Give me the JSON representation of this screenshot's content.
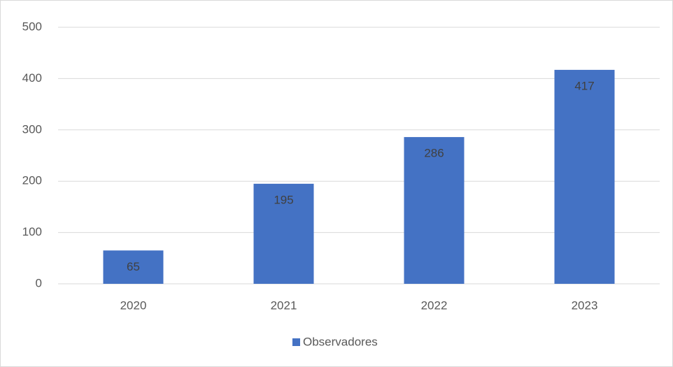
{
  "chart_data": {
    "type": "bar",
    "categories": [
      "2020",
      "2021",
      "2022",
      "2023"
    ],
    "series": [
      {
        "name": "Observadores",
        "color": "#4472c4",
        "values": [
          65,
          195,
          286,
          417
        ]
      }
    ],
    "ylim": [
      0,
      500
    ],
    "yticks": [
      0,
      100,
      200,
      300,
      400,
      500
    ],
    "grid": true,
    "legend": "bottom",
    "data_labels": true
  }
}
